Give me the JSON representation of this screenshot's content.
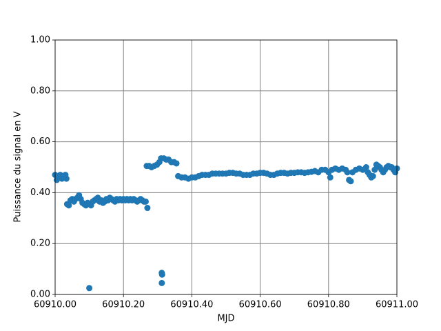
{
  "chart_data": {
    "type": "scatter",
    "xlabel": "MJD",
    "ylabel": "Puissance du signal en V",
    "xlim": [
      60910,
      60911
    ],
    "xticks": [
      {
        "value": 60910,
        "label": "60910.00"
      },
      {
        "value": 60910.2,
        "label": "60910.20"
      },
      {
        "value": 60910.4,
        "label": "60910.40"
      },
      {
        "value": 60910.6,
        "label": "60910.60"
      },
      {
        "value": 60910.8,
        "label": "60910.80"
      },
      {
        "value": 60911,
        "label": "60911.00"
      }
    ],
    "ylim": [
      0,
      1
    ],
    "yticks": [
      {
        "value": 0,
        "label": "0.00"
      },
      {
        "value": 0.2,
        "label": "0.20"
      },
      {
        "value": 0.4,
        "label": "0.40"
      },
      {
        "value": 0.6,
        "label": "0.60"
      },
      {
        "value": 0.8,
        "label": "0.80"
      },
      {
        "value": 1,
        "label": "1.00"
      }
    ],
    "grid": true,
    "color": "#1f77b4",
    "x": [
      60910.0,
      60910.005,
      60910.01,
      60910.015,
      60910.02,
      60910.025,
      60910.03,
      60910.033,
      60910.035,
      60910.04,
      60910.045,
      60910.05,
      60910.055,
      60910.06,
      60910.065,
      60910.07,
      60910.075,
      60910.08,
      60910.085,
      60910.09,
      60910.095,
      60910.1,
      60910.105,
      60910.11,
      60910.115,
      60910.12,
      60910.125,
      60910.13,
      60910.135,
      60910.14,
      60910.145,
      60910.15,
      60910.155,
      60910.16,
      60910.165,
      60910.17,
      60910.175,
      60910.18,
      60910.185,
      60910.19,
      60910.195,
      60910.2,
      60910.205,
      60910.21,
      60910.215,
      60910.22,
      60910.225,
      60910.23,
      60910.235,
      60910.24,
      60910.245,
      60910.25,
      60910.255,
      60910.26,
      60910.265,
      60910.27,
      60910.268,
      60910.275,
      60910.282,
      60910.29,
      60910.298,
      60910.305,
      60910.31,
      60910.312,
      60910.313,
      60910.3121,
      60910.318,
      60910.325,
      60910.332,
      60910.34,
      60910.348,
      60910.355,
      60910.36,
      60910.37,
      60910.38,
      60910.39,
      60910.4,
      60910.41,
      60910.42,
      60910.43,
      60910.44,
      60910.45,
      60910.46,
      60910.47,
      60910.48,
      60910.49,
      60910.5,
      60910.51,
      60910.52,
      60910.53,
      60910.54,
      60910.55,
      60910.56,
      60910.57,
      60910.58,
      60910.59,
      60910.6,
      60910.61,
      60910.62,
      60910.63,
      60910.64,
      60910.65,
      60910.66,
      60910.67,
      60910.68,
      60910.69,
      60910.7,
      60910.71,
      60910.72,
      60910.73,
      60910.74,
      60910.75,
      60910.76,
      60910.77,
      60910.78,
      60910.79,
      60910.8,
      60910.805,
      60910.81,
      60910.82,
      60910.83,
      60910.84,
      60910.85,
      60910.855,
      60910.86,
      60910.865,
      60910.87,
      60910.88,
      60910.89,
      60910.9,
      60910.91,
      60910.915,
      60910.92,
      60910.925,
      60910.93,
      60910.935,
      60910.94,
      60910.945,
      60910.95,
      60910.955,
      60910.96,
      60910.965,
      60910.97,
      60910.975,
      60910.98,
      60910.985,
      60910.99,
      60910.995,
      60911.0
    ],
    "values": [
      0.47,
      0.45,
      0.46,
      0.47,
      0.455,
      0.46,
      0.47,
      0.455,
      0.355,
      0.35,
      0.37,
      0.375,
      0.365,
      0.375,
      0.38,
      0.39,
      0.375,
      0.36,
      0.355,
      0.35,
      0.36,
      0.025,
      0.35,
      0.365,
      0.37,
      0.375,
      0.38,
      0.365,
      0.37,
      0.36,
      0.365,
      0.375,
      0.37,
      0.38,
      0.375,
      0.37,
      0.365,
      0.375,
      0.37,
      0.375,
      0.37,
      0.375,
      0.37,
      0.375,
      0.37,
      0.375,
      0.37,
      0.375,
      0.37,
      0.365,
      0.37,
      0.375,
      0.37,
      0.365,
      0.365,
      0.34,
      0.505,
      0.505,
      0.5,
      0.505,
      0.51,
      0.52,
      0.535,
      0.085,
      0.078,
      0.045,
      0.535,
      0.53,
      0.53,
      0.52,
      0.52,
      0.515,
      0.465,
      0.46,
      0.46,
      0.455,
      0.46,
      0.46,
      0.465,
      0.47,
      0.47,
      0.47,
      0.475,
      0.475,
      0.475,
      0.475,
      0.475,
      0.478,
      0.478,
      0.475,
      0.475,
      0.47,
      0.47,
      0.47,
      0.475,
      0.475,
      0.478,
      0.478,
      0.475,
      0.47,
      0.47,
      0.475,
      0.478,
      0.478,
      0.475,
      0.478,
      0.478,
      0.48,
      0.48,
      0.478,
      0.48,
      0.482,
      0.485,
      0.48,
      0.49,
      0.49,
      0.48,
      0.46,
      0.49,
      0.495,
      0.49,
      0.495,
      0.49,
      0.48,
      0.45,
      0.445,
      0.48,
      0.49,
      0.495,
      0.49,
      0.5,
      0.48,
      0.47,
      0.46,
      0.465,
      0.49,
      0.51,
      0.505,
      0.5,
      0.49,
      0.48,
      0.49,
      0.5,
      0.505,
      0.5,
      0.5,
      0.49,
      0.48,
      0.495
    ]
  }
}
